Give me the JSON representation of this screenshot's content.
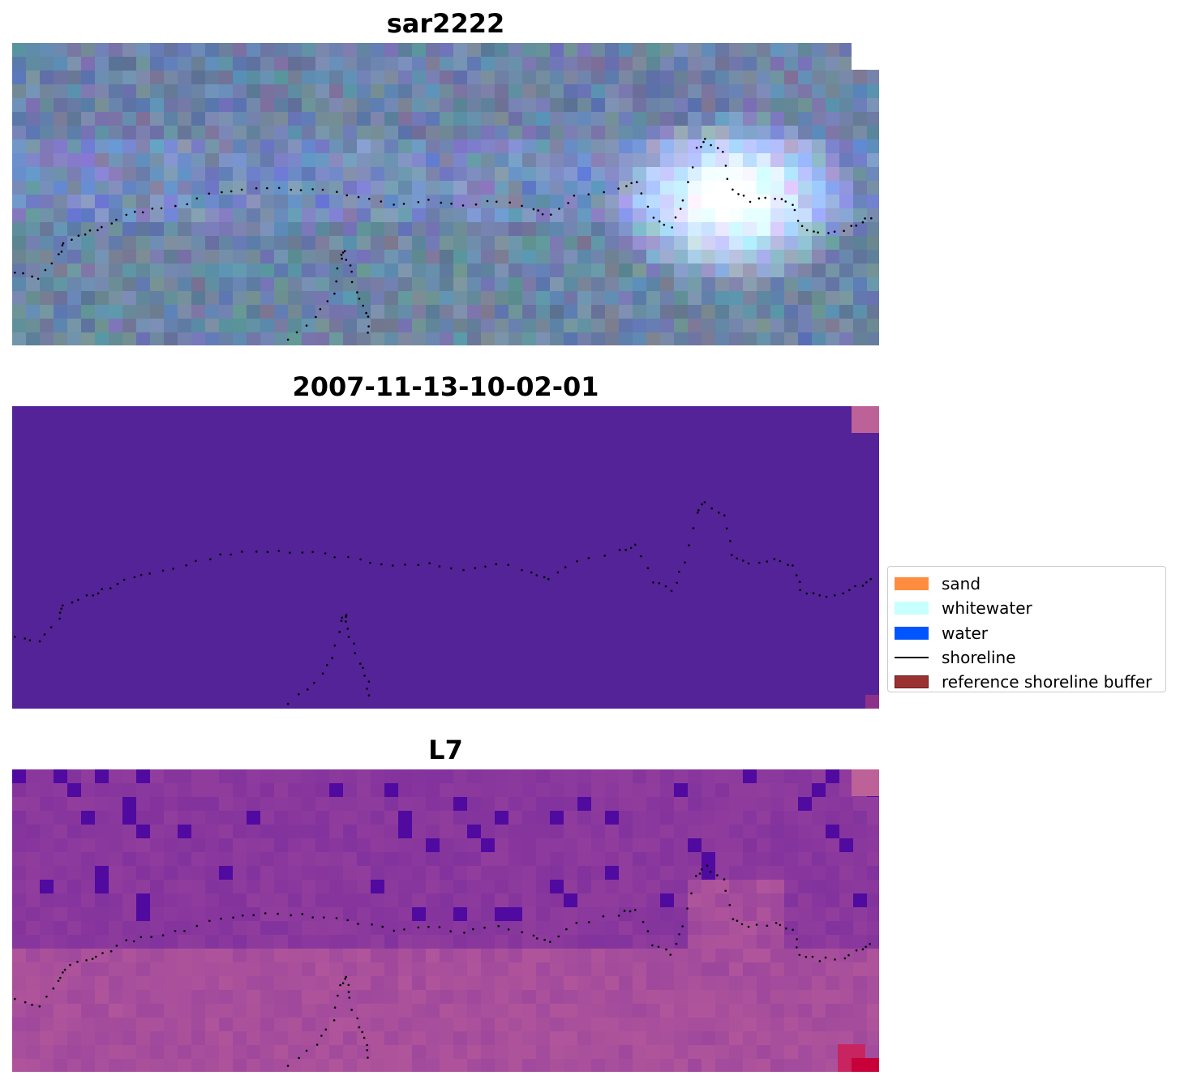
{
  "panels": [
    {
      "id": "rgb",
      "title": "sar2222"
    },
    {
      "id": "classified",
      "title": "2007-11-13-10-02-01"
    },
    {
      "id": "index",
      "title": "L7"
    }
  ],
  "legend": {
    "items": [
      {
        "label": "sand",
        "color": "#ff8c3f",
        "kind": "patch"
      },
      {
        "label": "whitewater",
        "color": "#c8ffff",
        "kind": "patch"
      },
      {
        "label": "water",
        "color": "#0055ff",
        "kind": "patch"
      },
      {
        "label": "shoreline",
        "color": "#000000",
        "kind": "line"
      },
      {
        "label": "reference shoreline buffer",
        "color": "#9b3232",
        "kind": "patch"
      }
    ]
  },
  "colors": {
    "rgb_base": "#6c82a8",
    "classified_base": "#532397",
    "classified_corner": "#bd6199",
    "index_low": "#7a2c9e",
    "index_high": "#b3579b"
  }
}
